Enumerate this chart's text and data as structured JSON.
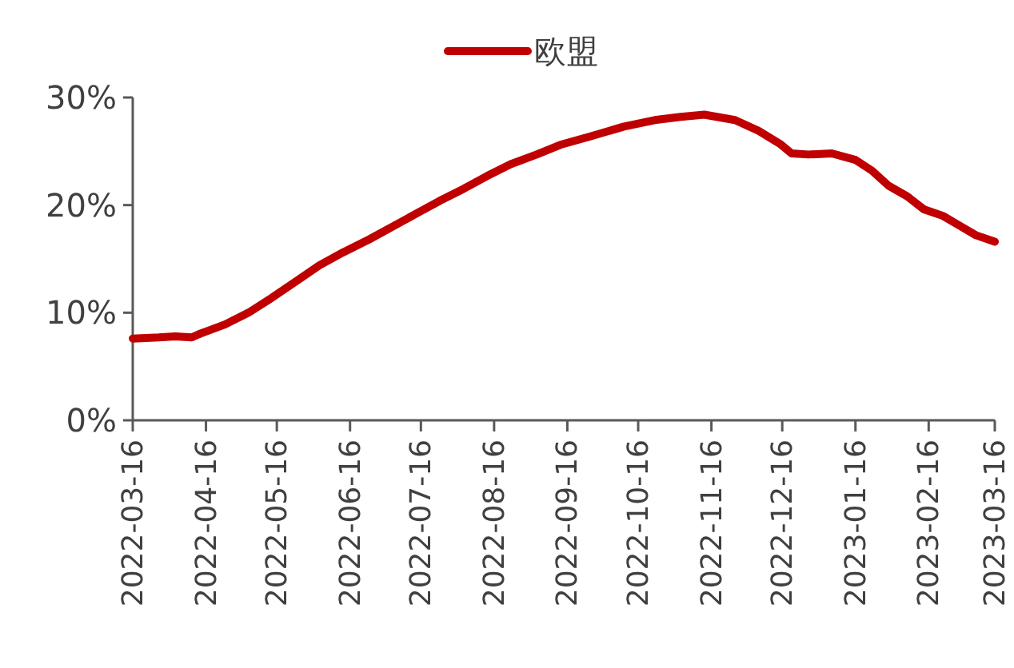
{
  "chart_data": {
    "type": "line",
    "x": [
      "2022-03-16",
      "2022-03-27",
      "2022-04-03",
      "2022-04-10",
      "2022-04-13",
      "2022-04-24",
      "2022-05-04",
      "2022-05-14",
      "2022-05-24",
      "2022-06-03",
      "2022-06-13",
      "2022-06-24",
      "2022-07-04",
      "2022-07-14",
      "2022-07-24",
      "2022-08-03",
      "2022-08-13",
      "2022-08-23",
      "2022-09-03",
      "2022-09-13",
      "2022-09-26",
      "2022-10-10",
      "2022-10-23",
      "2022-11-03",
      "2022-11-13",
      "2022-11-26",
      "2022-12-06",
      "2022-12-15",
      "2022-12-20",
      "2022-12-27",
      "2023-01-06",
      "2023-01-16",
      "2023-01-23",
      "2023-01-30",
      "2023-02-07",
      "2023-02-14",
      "2023-02-22",
      "2023-03-01",
      "2023-03-08",
      "2023-03-16"
    ],
    "series": [
      {
        "name": "欧盟",
        "color": "#c00000",
        "values": [
          7.6,
          7.7,
          7.8,
          7.7,
          8.0,
          8.9,
          10.0,
          11.4,
          12.9,
          14.4,
          15.6,
          16.8,
          18.0,
          19.2,
          20.4,
          21.5,
          22.7,
          23.8,
          24.7,
          25.6,
          26.4,
          27.3,
          27.9,
          28.2,
          28.4,
          27.9,
          26.9,
          25.7,
          24.8,
          24.7,
          24.8,
          24.2,
          23.2,
          21.8,
          20.8,
          19.6,
          19.0,
          18.1,
          17.2,
          16.6
        ]
      }
    ],
    "xlim": [
      "2022-03-16",
      "2023-03-16"
    ],
    "xticks": [
      "2022-03-16",
      "2022-04-16",
      "2022-05-16",
      "2022-06-16",
      "2022-07-16",
      "2022-08-16",
      "2022-09-16",
      "2022-10-16",
      "2022-11-16",
      "2022-12-16",
      "2023-01-16",
      "2023-02-16",
      "2023-03-16"
    ],
    "ylim": [
      0,
      30
    ],
    "yticks": [
      {
        "value": 0,
        "label": "0%"
      },
      {
        "value": 10,
        "label": "10%"
      },
      {
        "value": 20,
        "label": "20%"
      },
      {
        "value": 30,
        "label": "30%"
      }
    ],
    "legend": "top"
  }
}
